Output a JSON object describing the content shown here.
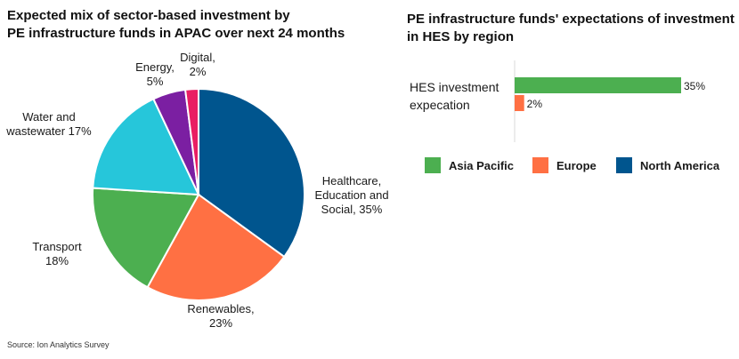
{
  "source": "Source: Ion Analytics Survey",
  "chart_data": [
    {
      "type": "pie",
      "title": "Expected mix of sector-based investment by\nPE infrastructure funds in APAC over next 24 months",
      "slices": [
        {
          "label": "Healthcare, Education and Social",
          "value": 35,
          "label_lines": [
            "Healthcare,",
            "Education and",
            "Social, 35%"
          ],
          "color": "#00558e"
        },
        {
          "label": "Renewables",
          "value": 23,
          "label_lines": [
            "Renewables,",
            "23%"
          ],
          "color": "#ff7043"
        },
        {
          "label": "Transport",
          "value": 18,
          "label_lines": [
            "Transport",
            "18%"
          ],
          "color": "#4caf50"
        },
        {
          "label": "Water and wastewater",
          "value": 17,
          "label_lines": [
            "Water and",
            "wastewater 17%"
          ],
          "color": "#26c6da"
        },
        {
          "label": "Energy",
          "value": 5,
          "label_lines": [
            "Energy,",
            "5%"
          ],
          "color": "#7b1fa2"
        },
        {
          "label": "Digital",
          "value": 2,
          "label_lines": [
            "Digital,",
            "2%"
          ],
          "color": "#e91e63"
        }
      ]
    },
    {
      "type": "bar",
      "orientation": "horizontal",
      "title": "PE infrastructure funds' expectations of investment\nin HES by region",
      "categories": [
        "HES investment expecation"
      ],
      "category_lines": [
        "HES investment",
        "expecation"
      ],
      "series": [
        {
          "name": "Asia Pacific",
          "values": [
            35
          ],
          "value_labels": [
            "35%"
          ],
          "color": "#4caf50"
        },
        {
          "name": "Europe",
          "values": [
            2
          ],
          "value_labels": [
            "2%"
          ],
          "color": "#ff7043"
        },
        {
          "name": "North America",
          "values": [
            null
          ],
          "value_labels": [
            ""
          ],
          "color": "#00558e"
        }
      ],
      "xlim": [
        0,
        35
      ],
      "legend": "bottom"
    }
  ]
}
